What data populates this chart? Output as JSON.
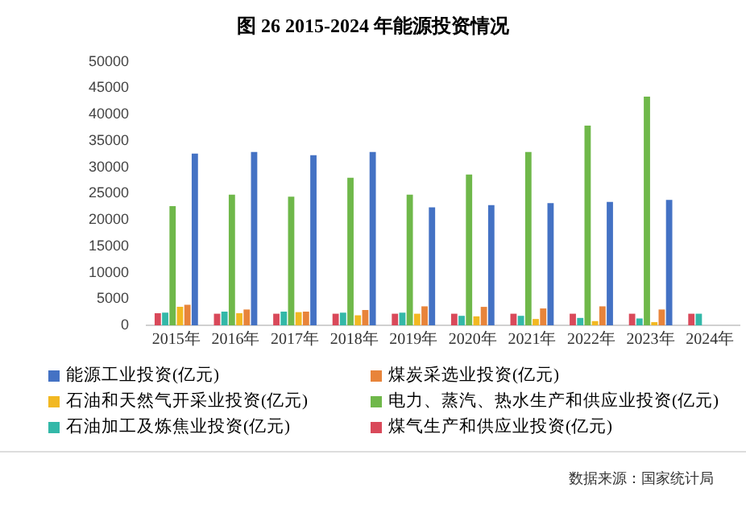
{
  "chart_data": {
    "type": "bar",
    "title": "图 26 2015-2024 年能源投资情况",
    "categories": [
      "2015年",
      "2016年",
      "2017年",
      "2018年",
      "2019年",
      "2020年",
      "2021年",
      "2022年",
      "2023年",
      "2024年"
    ],
    "series": [
      {
        "name": "煤气生产和供应业投资(亿元)",
        "color": "#d9495a",
        "values": [
          2300,
          2200,
          2200,
          2200,
          2200,
          2200,
          2200,
          2200,
          2200,
          2200
        ]
      },
      {
        "name": "石油加工及炼焦业投资(亿元)",
        "color": "#33b8a8",
        "values": [
          2400,
          2600,
          2600,
          2400,
          2400,
          1800,
          1800,
          1400,
          1300,
          2200
        ]
      },
      {
        "name": "电力、蒸汽、热水生产和供应业投资(亿元)",
        "color": "#6fb84a",
        "values": [
          22600,
          24800,
          24400,
          28000,
          24800,
          28600,
          32900,
          37900,
          43400,
          null
        ]
      },
      {
        "name": "石油和天然气开采业投资(亿元)",
        "color": "#f2b822",
        "values": [
          3500,
          2300,
          2500,
          1900,
          2200,
          1700,
          1200,
          800,
          600,
          null
        ]
      },
      {
        "name": "煤炭采选业投资(亿元)",
        "color": "#e8843a",
        "values": [
          3900,
          3000,
          2600,
          2900,
          3600,
          3500,
          3200,
          3600,
          3000,
          null
        ]
      },
      {
        "name": "能源工业投资(亿元)",
        "color": "#4472c4",
        "values": [
          32600,
          32900,
          32300,
          32900,
          22400,
          22800,
          23200,
          23400,
          23800,
          null
        ]
      }
    ],
    "ylim": [
      0,
      50000
    ],
    "yticks": [
      0,
      5000,
      10000,
      15000,
      20000,
      25000,
      30000,
      35000,
      40000,
      45000,
      50000
    ],
    "grid": false,
    "legend": "bottom",
    "annotations": [
      "数据来源：国家统计局"
    ]
  }
}
